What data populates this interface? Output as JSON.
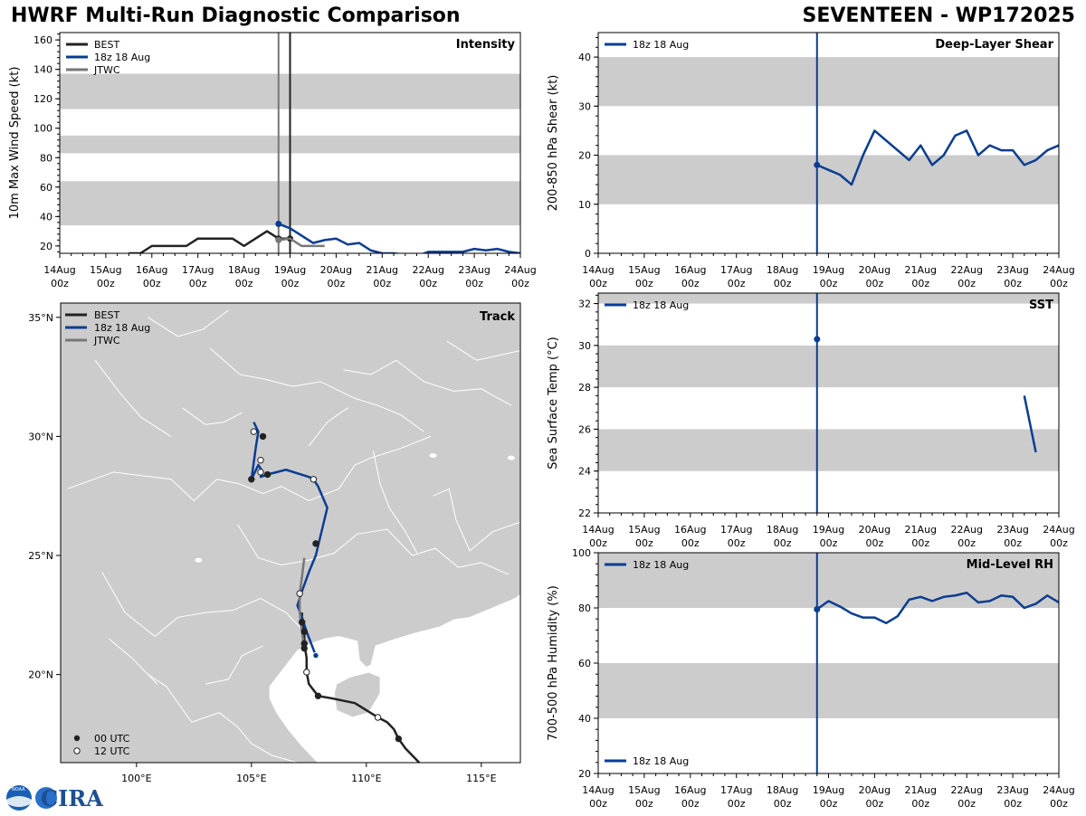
{
  "header": {
    "title": "HWRF Multi-Run Diagnostic Comparison",
    "storm": "SEVENTEEN - WP172025"
  },
  "logo": {
    "text": "CIRA",
    "badge": "NOAA"
  },
  "time_axis": {
    "ticks": [
      {
        "top": "14Aug",
        "bot": "00z"
      },
      {
        "top": "15Aug",
        "bot": "00z"
      },
      {
        "top": "16Aug",
        "bot": "00z"
      },
      {
        "top": "17Aug",
        "bot": "00z"
      },
      {
        "top": "18Aug",
        "bot": "00z"
      },
      {
        "top": "19Aug",
        "bot": "00z"
      },
      {
        "top": "20Aug",
        "bot": "00z"
      },
      {
        "top": "21Aug",
        "bot": "00z"
      },
      {
        "top": "22Aug",
        "bot": "00z"
      },
      {
        "top": "23Aug",
        "bot": "00z"
      },
      {
        "top": "24Aug",
        "bot": "00z"
      }
    ]
  },
  "colors": {
    "best": "#222222",
    "run": "#0a3d91",
    "jtwc": "#777777",
    "band": "#cccccc",
    "land": "#cccccc",
    "border": "#ffffff"
  },
  "chart_data": [
    {
      "id": "intensity",
      "type": "line",
      "title": "Intensity",
      "ylabel": "10m Max Wind Speed (kt)",
      "ylim": [
        15,
        165
      ],
      "yticks": [
        20,
        40,
        60,
        80,
        100,
        120,
        140,
        160
      ],
      "x_unit": "days since 14Aug 00z",
      "xlim": [
        0,
        10
      ],
      "bands": [
        [
          34,
          64
        ],
        [
          83,
          95
        ],
        [
          113,
          137
        ]
      ],
      "vlines": [
        {
          "x": 4.75,
          "color": "jtwc"
        },
        {
          "x": 5.0,
          "color": "best"
        }
      ],
      "legend": [
        "BEST",
        "18z 18 Aug",
        "JTWC"
      ],
      "series": [
        {
          "name": "BEST",
          "color": "best",
          "x": [
            1.5,
            1.75,
            2,
            2.25,
            2.5,
            2.75,
            3,
            3.25,
            3.5,
            3.75,
            4,
            4.25,
            4.5,
            4.75,
            5
          ],
          "y": [
            15,
            15,
            20,
            20,
            20,
            20,
            25,
            25,
            25,
            25,
            20,
            25,
            30,
            25,
            25
          ],
          "markers": [
            4.75,
            5
          ]
        },
        {
          "name": "18z 18 Aug",
          "color": "run",
          "x": [
            4.75,
            5,
            5.25,
            5.5,
            5.75,
            6,
            6.25,
            6.5,
            6.75,
            7,
            7.25,
            7.5,
            7.75,
            8,
            8.25,
            8.5,
            8.75,
            9,
            9.25,
            9.5,
            9.75,
            10
          ],
          "y": [
            35,
            32,
            27,
            22,
            24,
            25,
            21,
            22,
            17,
            15,
            15,
            14,
            13,
            16,
            16,
            16,
            16,
            18,
            17,
            18,
            16,
            15
          ],
          "markers": [
            4.75
          ]
        },
        {
          "name": "JTWC",
          "color": "jtwc",
          "x": [
            4.75,
            5,
            5.25,
            5.5,
            5.75
          ],
          "y": [
            24,
            25,
            20,
            20,
            20
          ],
          "markers": [
            4.75
          ]
        }
      ]
    },
    {
      "id": "shear",
      "type": "line",
      "title": "Deep-Layer Shear",
      "ylabel": "200-850 hPa Shear (kt)",
      "ylim": [
        0,
        45
      ],
      "yticks": [
        0,
        10,
        20,
        30,
        40
      ],
      "x_unit": "days since 14Aug 00z",
      "xlim": [
        0,
        10
      ],
      "bands": [
        [
          10,
          20
        ],
        [
          30,
          40
        ]
      ],
      "vlines": [
        {
          "x": 4.75,
          "color": "run"
        }
      ],
      "legend": [
        "18z 18 Aug"
      ],
      "series": [
        {
          "name": "18z 18 Aug",
          "color": "run",
          "x": [
            4.75,
            5,
            5.25,
            5.5,
            5.75,
            6,
            6.25,
            6.5,
            6.75,
            7,
            7.25,
            7.5,
            7.75,
            8,
            8.25,
            8.5,
            8.75,
            9,
            9.25,
            9.5,
            9.75,
            10
          ],
          "y": [
            18,
            17,
            16,
            14,
            20,
            25,
            23,
            21,
            19,
            22,
            18,
            20,
            24,
            25,
            20,
            22,
            21,
            21,
            18,
            19,
            21,
            22
          ],
          "markers": [
            4.75
          ]
        }
      ]
    },
    {
      "id": "sst",
      "type": "line",
      "title": "SST",
      "ylabel": "Sea Surface Temp (°C)",
      "ylim": [
        22,
        32.5
      ],
      "yticks": [
        22,
        24,
        26,
        28,
        30,
        32
      ],
      "x_unit": "days since 14Aug 00z",
      "xlim": [
        0,
        10
      ],
      "bands": [
        [
          24,
          26
        ],
        [
          28,
          30
        ],
        [
          32,
          33
        ]
      ],
      "vlines": [
        {
          "x": 4.75,
          "color": "run"
        }
      ],
      "legend": [
        "18z 18 Aug"
      ],
      "series": [
        {
          "name": "18z 18 Aug point",
          "color": "run",
          "x": [
            4.75
          ],
          "y": [
            30.3
          ],
          "markers": [
            4.75
          ]
        },
        {
          "name": "18z 18 Aug",
          "color": "run",
          "x": [
            9.25,
            9.5
          ],
          "y": [
            27.6,
            24.9
          ],
          "markers": []
        }
      ]
    },
    {
      "id": "rh",
      "type": "line",
      "title": "Mid-Level RH",
      "ylabel": "700-500 hPa Humidity (%)",
      "ylim": [
        20,
        100
      ],
      "yticks": [
        20,
        40,
        60,
        80,
        100
      ],
      "x_unit": "days since 14Aug 00z",
      "xlim": [
        0,
        10
      ],
      "bands": [
        [
          40,
          60
        ],
        [
          80,
          100
        ]
      ],
      "vlines": [
        {
          "x": 4.75,
          "color": "run"
        }
      ],
      "legend": [
        "18z 18 Aug"
      ],
      "series": [
        {
          "name": "18z 18 Aug",
          "color": "run",
          "x": [
            4.75,
            5,
            5.25,
            5.5,
            5.75,
            6,
            6.25,
            6.5,
            6.75,
            7,
            7.25,
            7.5,
            7.75,
            8,
            8.25,
            8.5,
            8.75,
            9,
            9.25,
            9.5,
            9.75,
            10
          ],
          "y": [
            79.5,
            82.5,
            80.5,
            78,
            76.5,
            76.5,
            74.5,
            77,
            83,
            84,
            82.5,
            84,
            84.5,
            85.5,
            82,
            82.5,
            84.5,
            84,
            80,
            81.5,
            84.5,
            82
          ],
          "markers": [
            4.75
          ]
        }
      ]
    },
    {
      "id": "track",
      "type": "line",
      "title": "Track",
      "xlim": [
        96.7,
        116.7
      ],
      "ylim": [
        16.3,
        35.6
      ],
      "xticks": [
        {
          "v": 100,
          "label": "100°E"
        },
        {
          "v": 105,
          "label": "105°E"
        },
        {
          "v": 110,
          "label": "110°E"
        },
        {
          "v": 115,
          "label": "115°E"
        }
      ],
      "yticks": [
        {
          "v": 20,
          "label": "20°N"
        },
        {
          "v": 25,
          "label": "25°N"
        },
        {
          "v": 30,
          "label": "30°N"
        },
        {
          "v": 35,
          "label": "35°N"
        }
      ],
      "legend": [
        "BEST",
        "18z 18 Aug",
        "JTWC"
      ],
      "marker_legend": [
        "00 UTC",
        "12 UTC"
      ],
      "series": [
        {
          "name": "BEST",
          "color": "best",
          "lon": [
            112.3,
            112.0,
            111.7,
            111.4,
            111.2,
            110.9,
            110.5,
            110.0,
            109.5,
            108.5,
            107.9,
            107.5,
            107.4,
            107.4,
            107.3,
            107.3,
            107.2,
            107.2
          ],
          "lat": [
            16.3,
            16.6,
            16.9,
            17.3,
            17.7,
            18.0,
            18.2,
            18.5,
            18.8,
            19.0,
            19.1,
            19.6,
            20.1,
            20.7,
            21.3,
            21.8,
            22.2,
            22.6
          ],
          "markers": [
            {
              "lon": 111.4,
              "lat": 17.3,
              "t": "00"
            },
            {
              "lon": 110.5,
              "lat": 18.2,
              "t": "12"
            },
            {
              "lon": 107.9,
              "lat": 19.1,
              "t": "00"
            },
            {
              "lon": 107.4,
              "lat": 20.1,
              "t": "12"
            },
            {
              "lon": 107.3,
              "lat": 21.3,
              "t": "00"
            },
            {
              "lon": 107.3,
              "lat": 21.8,
              "t": "00"
            },
            {
              "lon": 107.2,
              "lat": 22.2,
              "t": "00"
            }
          ]
        },
        {
          "name": "18z 18 Aug",
          "color": "run",
          "lon": [
            107.8,
            107.6,
            107.4,
            107.2,
            107.0,
            107.2,
            107.5,
            107.8,
            108.3,
            107.9,
            107.7,
            107.5,
            106.5,
            105.7,
            105.4,
            105.5,
            105.3,
            105.0,
            105.2,
            105.3,
            105.1
          ],
          "lat": [
            20.8,
            21.3,
            21.8,
            22.4,
            22.9,
            23.5,
            24.3,
            25.0,
            27.0,
            27.9,
            28.2,
            28.3,
            28.6,
            28.4,
            28.3,
            28.5,
            28.8,
            28.2,
            29.6,
            30.2,
            30.6
          ],
          "markers": [
            {
              "lon": 107.8,
              "lat": 20.8,
              "t": "run"
            },
            {
              "lon": 107.8,
              "lat": 25.5,
              "t": "00"
            },
            {
              "lon": 107.7,
              "lat": 28.2,
              "t": "12"
            },
            {
              "lon": 105.7,
              "lat": 28.4,
              "t": "00"
            },
            {
              "lon": 105.4,
              "lat": 28.5,
              "t": "12"
            },
            {
              "lon": 105.0,
              "lat": 28.2,
              "t": "00"
            },
            {
              "lon": 105.4,
              "lat": 29.0,
              "t": "12"
            },
            {
              "lon": 105.5,
              "lat": 30.0,
              "t": "00"
            },
            {
              "lon": 105.1,
              "lat": 30.2,
              "t": "12"
            }
          ]
        },
        {
          "name": "JTWC",
          "color": "jtwc",
          "lon": [
            107.3,
            107.2,
            107.1,
            107.1,
            107.2,
            107.3
          ],
          "lat": [
            21.0,
            21.8,
            22.6,
            23.4,
            24.1,
            24.9
          ],
          "markers": [
            {
              "lon": 107.1,
              "lat": 23.4,
              "t": "12"
            },
            {
              "lon": 107.3,
              "lat": 21.1,
              "t": "00"
            }
          ]
        }
      ]
    }
  ]
}
